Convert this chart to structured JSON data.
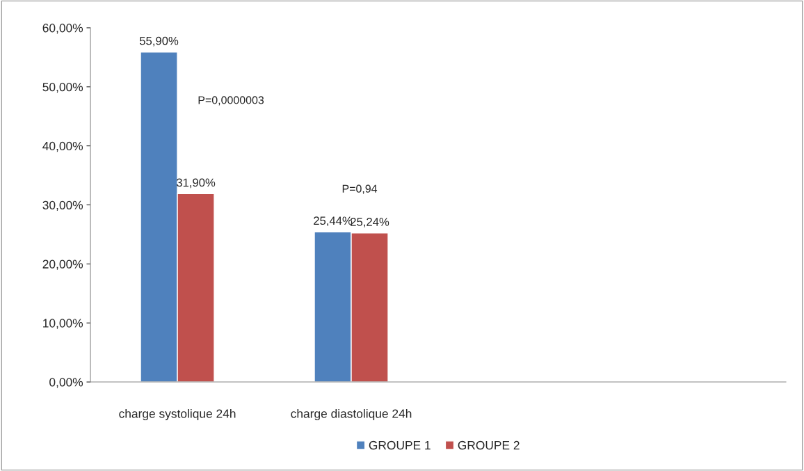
{
  "chart_data": {
    "type": "bar",
    "categories": [
      "charge systolique 24h",
      "charge diastolique 24h",
      null,
      null
    ],
    "series": [
      {
        "name": "GROUPE 1",
        "color": "#4f81bd",
        "values": [
          55.9,
          25.44,
          null,
          null
        ],
        "value_labels": [
          "55,90%",
          "25,44%",
          null,
          null
        ]
      },
      {
        "name": "GROUPE 2",
        "color": "#c0504d",
        "values": [
          31.9,
          25.24,
          null,
          null
        ],
        "value_labels": [
          "31,90%",
          "25,24%",
          null,
          null
        ]
      }
    ],
    "ylim": [
      0,
      60
    ],
    "yticks": [
      {
        "value": 0,
        "label": "0,00%"
      },
      {
        "value": 10,
        "label": "10,00%"
      },
      {
        "value": 20,
        "label": "20,00%"
      },
      {
        "value": 30,
        "label": "30,00%"
      },
      {
        "value": 40,
        "label": "40,00%"
      },
      {
        "value": 50,
        "label": "50,00%"
      },
      {
        "value": 60,
        "label": "60,00%"
      }
    ],
    "annotations": [
      "P=0,0000003",
      "P=0,94"
    ],
    "legend": "bottom",
    "grid": false
  }
}
